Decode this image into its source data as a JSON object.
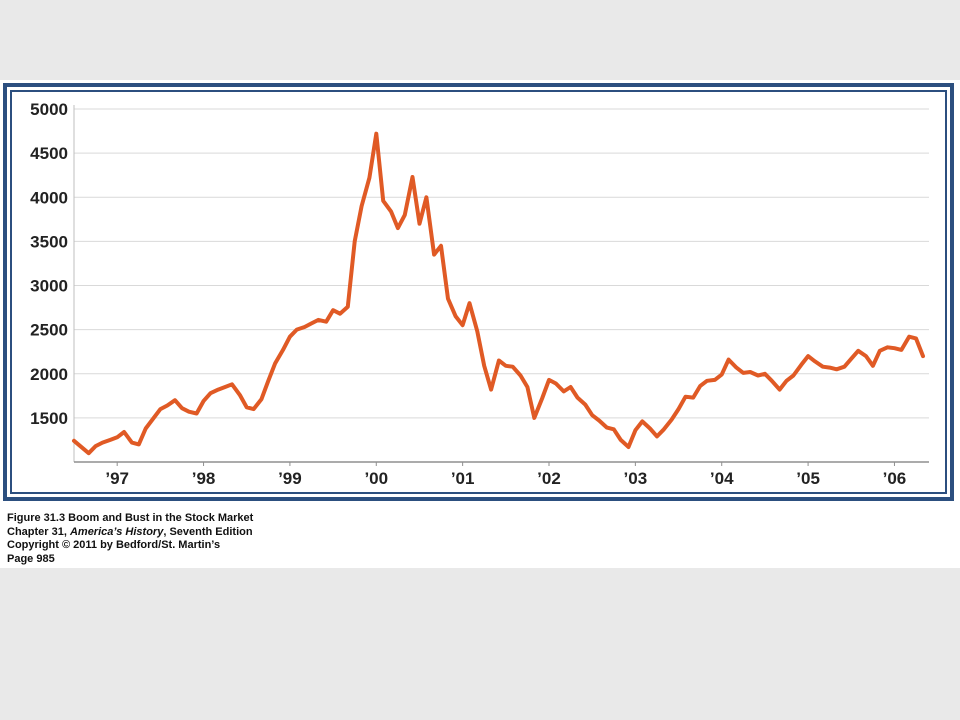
{
  "chart_data": {
    "type": "line",
    "title": "",
    "xlabel": "",
    "ylabel": "",
    "xlim": [
      1996.5,
      2006.4
    ],
    "ylim": [
      1000,
      5000
    ],
    "y_ticks": [
      1500,
      2000,
      2500,
      3000,
      3500,
      4000,
      4500,
      5000
    ],
    "y_tick_labels": [
      "1500",
      "2000",
      "2500",
      "3000",
      "3500",
      "4000",
      "4500",
      "5000"
    ],
    "x_ticks": [
      1997,
      1998,
      1999,
      2000,
      2001,
      2002,
      2003,
      2004,
      2005,
      2006
    ],
    "x_tick_labels": [
      "’97",
      "’98",
      "’99",
      "’00",
      "’01",
      "’02",
      "’03",
      "’04",
      "’05",
      "’06"
    ],
    "grid": "horizontal",
    "series": [
      {
        "color": "#e05a25",
        "x": [
          1996.5,
          1996.67,
          1996.75,
          1996.83,
          1996.92,
          1997.0,
          1997.08,
          1997.17,
          1997.25,
          1997.33,
          1997.5,
          1997.58,
          1997.67,
          1997.75,
          1997.83,
          1997.92,
          1998.0,
          1998.08,
          1998.17,
          1998.25,
          1998.33,
          1998.42,
          1998.5,
          1998.58,
          1998.67,
          1998.75,
          1998.83,
          1998.92,
          1999.0,
          1999.08,
          1999.17,
          1999.25,
          1999.33,
          1999.42,
          1999.5,
          1999.58,
          1999.67,
          1999.75,
          1999.83,
          1999.92,
          2000.0,
          2000.08,
          2000.17,
          2000.25,
          2000.33,
          2000.42,
          2000.5,
          2000.58,
          2000.67,
          2000.75,
          2000.83,
          2000.92,
          2001.0,
          2001.08,
          2001.17,
          2001.25,
          2001.33,
          2001.42,
          2001.5,
          2001.58,
          2001.67,
          2001.75,
          2001.83,
          2001.92,
          2002.0,
          2002.08,
          2002.17,
          2002.25,
          2002.33,
          2002.42,
          2002.5,
          2002.58,
          2002.67,
          2002.75,
          2002.83,
          2002.92,
          2003.0,
          2003.08,
          2003.17,
          2003.25,
          2003.33,
          2003.42,
          2003.5,
          2003.58,
          2003.67,
          2003.75,
          2003.83,
          2003.92,
          2004.0,
          2004.08,
          2004.17,
          2004.25,
          2004.33,
          2004.42,
          2004.5,
          2004.58,
          2004.67,
          2004.75,
          2004.83,
          2004.92,
          2005.0,
          2005.08,
          2005.17,
          2005.25,
          2005.33,
          2005.42,
          2005.5,
          2005.58,
          2005.67,
          2005.75,
          2005.83,
          2005.92,
          2006.0,
          2006.08,
          2006.17,
          2006.25,
          2006.33
        ],
        "values": [
          1240,
          1100,
          1180,
          1220,
          1250,
          1280,
          1340,
          1220,
          1200,
          1380,
          1600,
          1640,
          1700,
          1610,
          1570,
          1550,
          1690,
          1780,
          1820,
          1850,
          1880,
          1760,
          1620,
          1600,
          1710,
          1920,
          2120,
          2270,
          2420,
          2500,
          2530,
          2570,
          2610,
          2590,
          2720,
          2680,
          2760,
          3500,
          3900,
          4220,
          4720,
          3960,
          3840,
          3650,
          3800,
          4230,
          3700,
          4000,
          3350,
          3450,
          2850,
          2650,
          2550,
          2800,
          2480,
          2090,
          1820,
          2150,
          2090,
          2080,
          1980,
          1850,
          1500,
          1720,
          1930,
          1890,
          1800,
          1850,
          1730,
          1650,
          1530,
          1470,
          1390,
          1370,
          1250,
          1170,
          1360,
          1460,
          1380,
          1290,
          1370,
          1480,
          1600,
          1740,
          1730,
          1860,
          1920,
          1930,
          1990,
          2160,
          2070,
          2010,
          2020,
          1980,
          2000,
          1920,
          1820,
          1920,
          1980,
          2100,
          2200,
          2140,
          2080,
          2070,
          2050,
          2080,
          2170,
          2260,
          2200,
          2090,
          2260,
          2300,
          2290,
          2270,
          2420,
          2400,
          2200
        ]
      }
    ]
  },
  "caption": {
    "line1": "Figure 31.3  Boom and Bust in the Stock Market",
    "line2_prefix": "Chapter 31, ",
    "line2_italic": "America’s History",
    "line2_suffix": ", Seventh Edition",
    "line3": "Copyright © 2011 by Bedford/St. Martin’s",
    "line4": "Page 985"
  }
}
